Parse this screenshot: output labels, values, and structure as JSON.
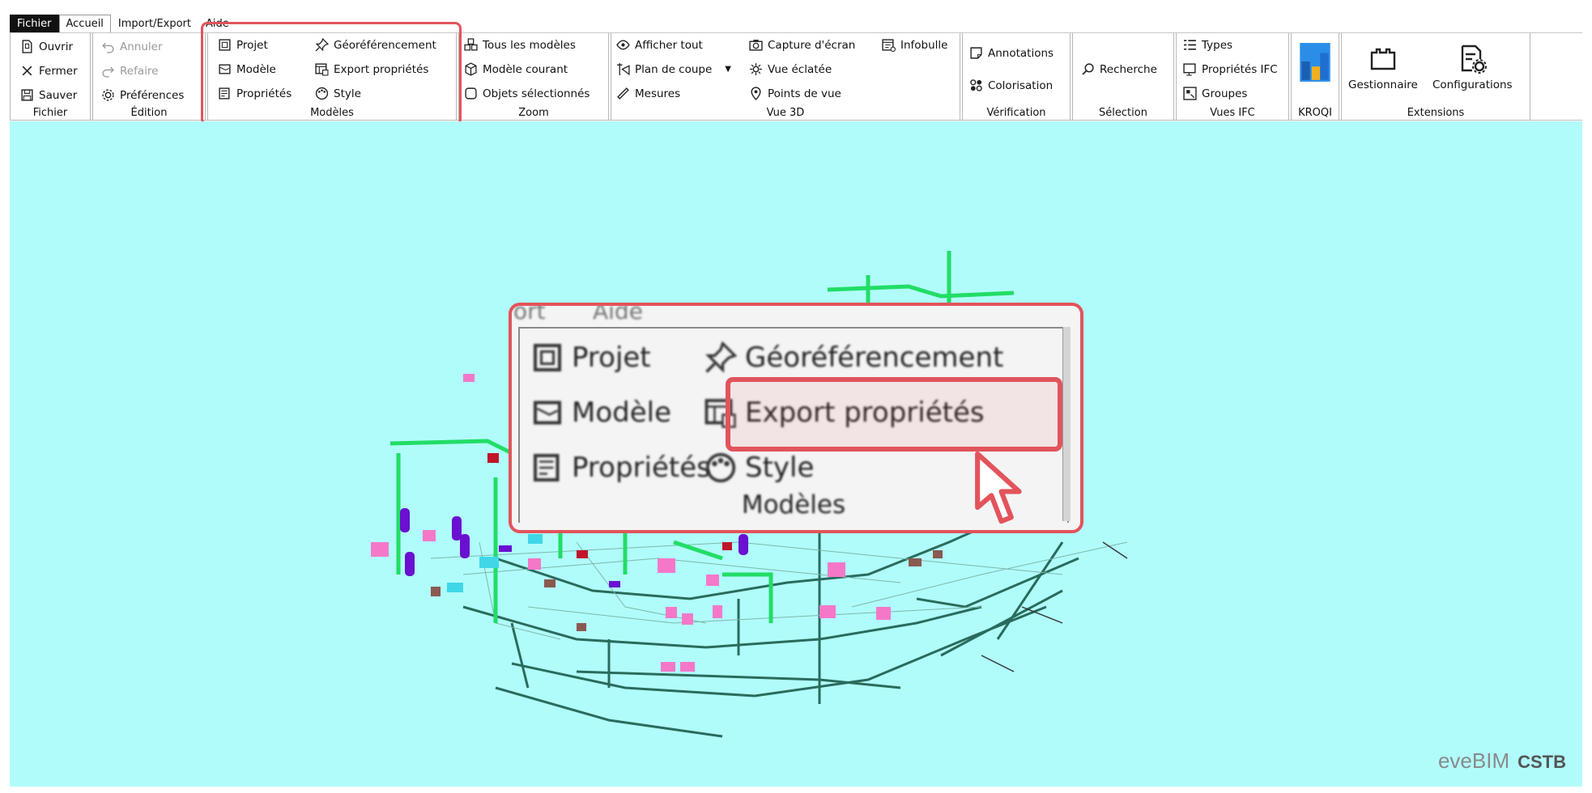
{
  "menubar": {
    "tabs": [
      {
        "label": "Fichier"
      },
      {
        "label": "Accueil"
      },
      {
        "label": "Import/Export"
      },
      {
        "label": "Aide"
      }
    ]
  },
  "ribbon": {
    "fichier": {
      "label": "Fichier",
      "items": [
        "Ouvrir",
        "Fermer",
        "Sauver"
      ]
    },
    "edition": {
      "label": "Édition",
      "items": [
        "Annuler",
        "Refaire",
        "Préférences"
      ]
    },
    "modeles": {
      "label": "Modèles",
      "items": [
        "Projet",
        "Modèle",
        "Propriétés",
        "Géoréférencement",
        "Export propriétés",
        "Style"
      ]
    },
    "zoom": {
      "label": "Zoom",
      "items": [
        "Tous les modèles",
        "Modèle courant",
        "Objets sélectionnés"
      ]
    },
    "vue3d": {
      "label": "Vue 3D",
      "items": [
        "Afficher tout",
        "Plan de coupe",
        "Mesures",
        "Capture d'écran",
        "Vue éclatée",
        "Points de vue",
        "Infobulle"
      ]
    },
    "verification": {
      "label": "Vérification",
      "items": [
        "Annotations",
        "Colorisation"
      ]
    },
    "selection": {
      "label": "Sélection",
      "items": [
        "Recherche"
      ]
    },
    "vues_ifc": {
      "label": "Vues IFC",
      "items": [
        "Types",
        "Propriétés IFC",
        "Groupes"
      ]
    },
    "kroqi": {
      "label": "KROQI"
    },
    "extensions": {
      "label": "Extensions",
      "items": [
        "Gestionnaire",
        "Configurations"
      ]
    }
  },
  "zoom_callout": {
    "tabs": [
      "ort",
      "Aide"
    ],
    "items": [
      "Projet",
      "Géoréférencement",
      "Modèle",
      "Export propriétés",
      "Propriétés",
      "Style"
    ],
    "group_label": "Modèles",
    "highlighted": "Export propriétés"
  },
  "branding": {
    "eve": "eveBIM",
    "cstb": "CSTB"
  },
  "colors": {
    "viewport_bg": "#b0fcfb",
    "highlight_red": "#e2545b",
    "pipe_green": "#22dd66",
    "pipe_dark": "#2a6b5c",
    "pink": "#f578c8",
    "purple": "#6a10d0"
  }
}
